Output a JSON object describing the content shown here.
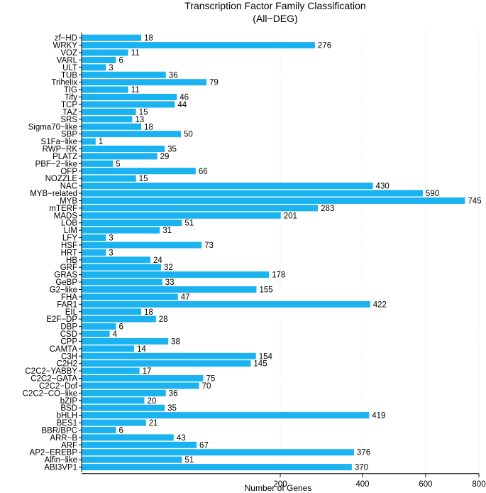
{
  "chart_data": {
    "type": "bar",
    "orientation": "horizontal",
    "title": "Transcription Factor Family Classification",
    "subtitle": "(All−DEG)",
    "xlabel": "Number of Genes",
    "ylabel": "",
    "x_scale": "sqrt",
    "xlim": [
      0,
      800
    ],
    "xticks": [
      200,
      400,
      600,
      800
    ],
    "grid": "vertical dashed",
    "bar_color": "#1ab2f0",
    "categories": [
      "zf−HD",
      "WRKY",
      "VOZ",
      "VARL",
      "ULT",
      "TUB",
      "Trihelix",
      "TIG",
      "Tify",
      "TCP",
      "TAZ",
      "SRS",
      "Sigma70−like",
      "SBP",
      "S1Fa−like",
      "RWP−RK",
      "PLATZ",
      "PBF−2−like",
      "OFP",
      "NOZZLE",
      "NAC",
      "MYB−related",
      "MYB",
      "mTERF",
      "MADS",
      "LOB",
      "LIM",
      "LFY",
      "HSF",
      "HRT",
      "HB",
      "GRF",
      "GRAS",
      "GeBP",
      "G2−like",
      "FHA",
      "FAR1",
      "EIL",
      "E2F−DP",
      "DBP",
      "CSD",
      "CPP",
      "CAMTA",
      "C3H",
      "C2H2",
      "C2C2−YABBY",
      "C2C2−GATA",
      "C2C2−Dof",
      "C2C2−CO−like",
      "bZIP",
      "BSD",
      "bHLH",
      "BES1",
      "BBR/BPC",
      "ARR−B",
      "ARF",
      "AP2−EREBP",
      "Alfin−like",
      "ABI3VP1"
    ],
    "values": [
      18,
      276,
      11,
      6,
      3,
      36,
      79,
      11,
      46,
      44,
      15,
      13,
      18,
      50,
      1,
      35,
      29,
      5,
      66,
      15,
      430,
      590,
      745,
      283,
      201,
      51,
      31,
      3,
      73,
      3,
      24,
      32,
      178,
      33,
      155,
      47,
      422,
      18,
      28,
      6,
      4,
      38,
      14,
      154,
      145,
      17,
      75,
      70,
      36,
      20,
      35,
      419,
      21,
      6,
      43,
      67,
      376,
      51,
      370
    ]
  }
}
